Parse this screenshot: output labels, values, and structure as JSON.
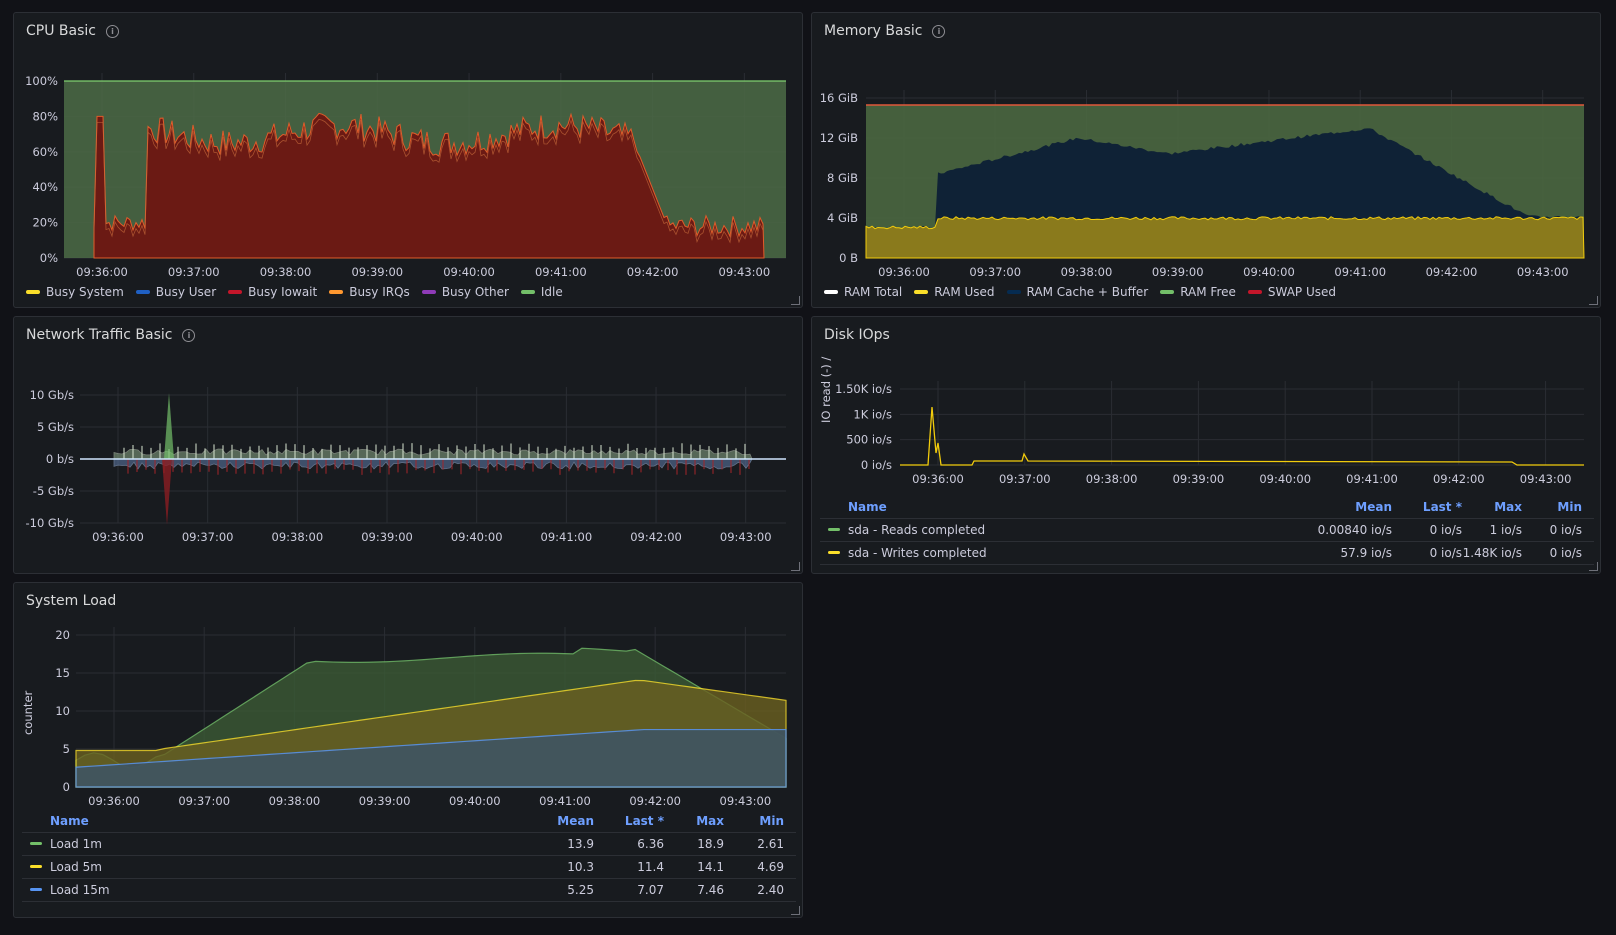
{
  "panels": {
    "cpu": {
      "title": "CPU Basic",
      "yticks": [
        "100%",
        "80%",
        "60%",
        "40%",
        "20%",
        "0%"
      ],
      "xticks": [
        "09:36:00",
        "09:37:00",
        "09:38:00",
        "09:39:00",
        "09:40:00",
        "09:41:00",
        "09:42:00",
        "09:43:00"
      ],
      "legend": [
        {
          "label": "Busy System",
          "color": "#fade2a"
        },
        {
          "label": "Busy User",
          "color": "#1f60c4"
        },
        {
          "label": "Busy Iowait",
          "color": "#c4162a"
        },
        {
          "label": "Busy IRQs",
          "color": "#ff9830"
        },
        {
          "label": "Busy Other",
          "color": "#8f3bb8"
        },
        {
          "label": "Idle",
          "color": "#73bf69"
        }
      ]
    },
    "memory": {
      "title": "Memory Basic",
      "yticks": [
        "16 GiB",
        "12 GiB",
        "8 GiB",
        "4 GiB",
        "0 B"
      ],
      "xticks": [
        "09:36:00",
        "09:37:00",
        "09:38:00",
        "09:39:00",
        "09:40:00",
        "09:41:00",
        "09:42:00",
        "09:43:00"
      ],
      "legend": [
        {
          "label": "RAM Total",
          "color": "#ffffff"
        },
        {
          "label": "RAM Used",
          "color": "#fade2a"
        },
        {
          "label": "RAM Cache + Buffer",
          "color": "#052b51"
        },
        {
          "label": "RAM Free",
          "color": "#73bf69"
        },
        {
          "label": "SWAP Used",
          "color": "#c4162a"
        }
      ]
    },
    "network": {
      "title": "Network Traffic Basic",
      "yticks": [
        "10 Gb/s",
        "5 Gb/s",
        "0 b/s",
        "-5 Gb/s",
        "-10 Gb/s"
      ],
      "xticks": [
        "09:36:00",
        "09:37:00",
        "09:38:00",
        "09:39:00",
        "09:40:00",
        "09:41:00",
        "09:42:00",
        "09:43:00"
      ]
    },
    "disk": {
      "title": "Disk IOps",
      "ylabel": "IO read (-) / write (+)",
      "yticks": [
        "1.50K io/s",
        "1K io/s",
        "500 io/s",
        "0 io/s"
      ],
      "xticks": [
        "09:36:00",
        "09:37:00",
        "09:38:00",
        "09:39:00",
        "09:40:00",
        "09:41:00",
        "09:42:00",
        "09:43:00"
      ],
      "table": {
        "headers": {
          "name": "Name",
          "mean": "Mean",
          "last": "Last *",
          "max": "Max",
          "min": "Min"
        },
        "rows": [
          {
            "name": "sda - Reads completed",
            "color": "#73bf69",
            "mean": "0.00840 io/s",
            "last": "0 io/s",
            "max": "1 io/s",
            "min": "0 io/s"
          },
          {
            "name": "sda - Writes completed",
            "color": "#fade2a",
            "mean": "57.9 io/s",
            "last": "0 io/s",
            "max": "1.48K io/s",
            "min": "0 io/s"
          }
        ]
      }
    },
    "load": {
      "title": "System Load",
      "ylabel": "counter",
      "yticks": [
        "20",
        "15",
        "10",
        "5",
        "0"
      ],
      "xticks": [
        "09:36:00",
        "09:37:00",
        "09:38:00",
        "09:39:00",
        "09:40:00",
        "09:41:00",
        "09:42:00",
        "09:43:00"
      ],
      "table": {
        "headers": {
          "name": "Name",
          "mean": "Mean",
          "last": "Last *",
          "max": "Max",
          "min": "Min"
        },
        "rows": [
          {
            "name": "Load 1m",
            "color": "#73bf69",
            "mean": "13.9",
            "last": "6.36",
            "max": "18.9",
            "min": "2.61"
          },
          {
            "name": "Load 5m",
            "color": "#fade2a",
            "mean": "10.3",
            "last": "11.4",
            "max": "14.1",
            "min": "4.69"
          },
          {
            "name": "Load 15m",
            "color": "#5794f2",
            "mean": "5.25",
            "last": "7.07",
            "max": "7.46",
            "min": "2.40"
          }
        ]
      }
    }
  }
}
